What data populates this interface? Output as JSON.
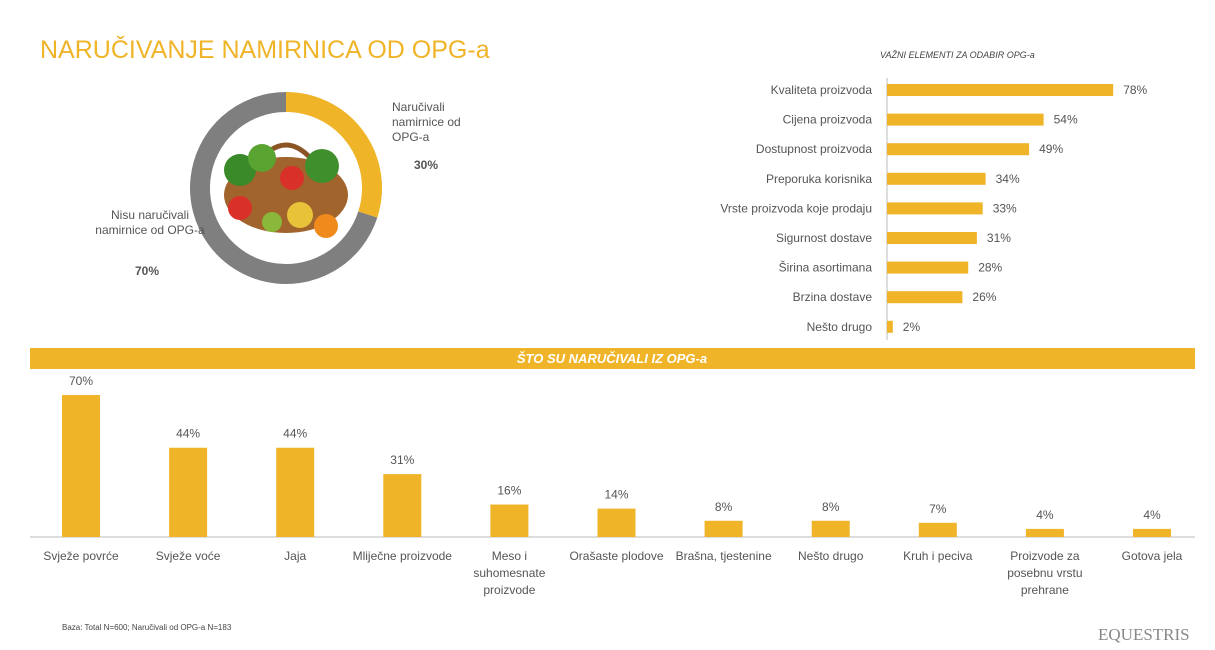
{
  "title": "NARUČIVANJE NAMIRNICA OD OPG-a",
  "footnote": "Baza: Total N=600; Naručivali od OPG-a N=183",
  "logo": "EQUESTRIS",
  "chart_data": [
    {
      "type": "donut",
      "categories": [
        "Naručivali namirnice od OPG-a",
        "Nisu naručivali namirnice od OPG-a"
      ],
      "values": [
        30,
        70
      ],
      "value_labels": [
        "30%",
        "70%"
      ],
      "colors": [
        "#f0b429",
        "#7f7f7f"
      ]
    },
    {
      "type": "hbar",
      "title": "VAŽNI ELEMENTI  ZA ODABIR OPG-a",
      "categories": [
        "Kvaliteta proizvoda",
        "Cijena proizvoda",
        "Dostupnost proizvoda",
        "Preporuka korisnika",
        "Vrste proizvoda koje prodaju",
        "Sigurnost dostave",
        "Širina asortimana",
        "Brzina dostave",
        "Nešto drugo"
      ],
      "values": [
        78,
        54,
        49,
        34,
        33,
        31,
        28,
        26,
        2
      ],
      "value_labels": [
        "78%",
        "54%",
        "49%",
        "34%",
        "33%",
        "31%",
        "28%",
        "26%",
        "2%"
      ],
      "xlim": [
        0,
        80
      ],
      "color": "#f0b429"
    },
    {
      "type": "bar",
      "title": "ŠTO SU NARUČIVALI IZ OPG-a",
      "categories": [
        "Svježe povrće",
        "Svježe voće",
        "Jaja",
        "Mliječne proizvode",
        "Meso i suhomesnate proizvode",
        "Orašaste plodove",
        "Brašna, tjestenine",
        "Nešto drugo",
        "Kruh i peciva",
        "Proizvode za posebnu vrstu prehrane",
        "Gotova jela"
      ],
      "values": [
        70,
        44,
        44,
        31,
        16,
        14,
        8,
        8,
        7,
        4,
        4
      ],
      "value_labels": [
        "70%",
        "44%",
        "44%",
        "31%",
        "16%",
        "14%",
        "8%",
        "8%",
        "7%",
        "4%",
        "4%"
      ],
      "ylim": [
        0,
        70
      ],
      "color": "#f0b429"
    }
  ]
}
